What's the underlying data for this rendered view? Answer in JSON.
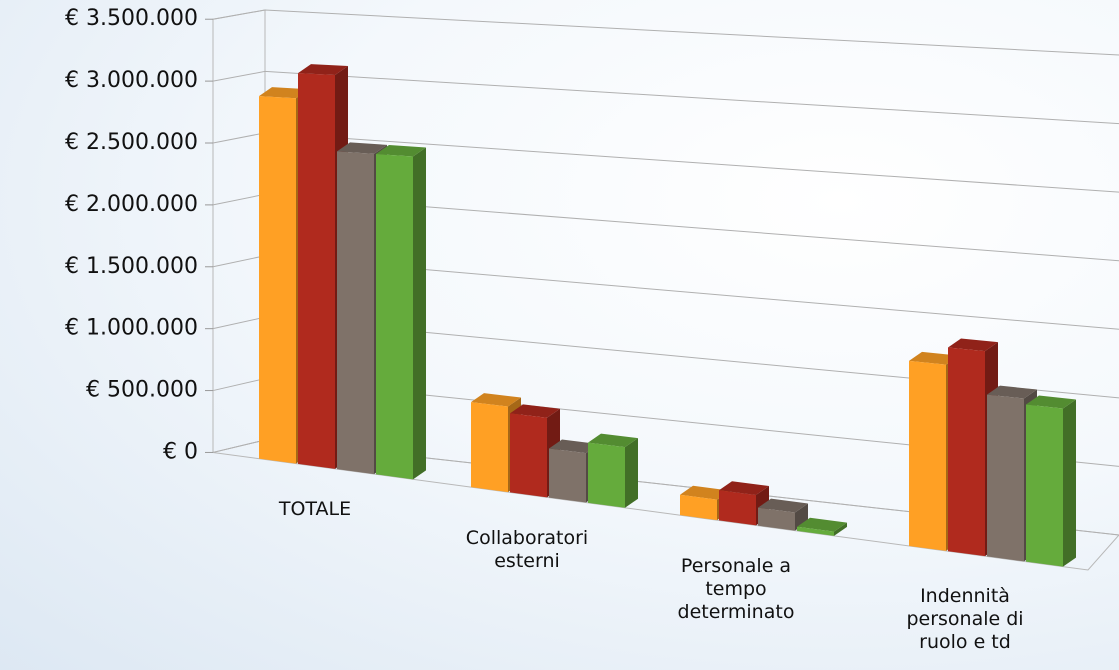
{
  "chart_data": {
    "type": "bar3d",
    "categories": [
      "TOTALE",
      "Collaboratori esterni",
      "Personale a tempo determinato",
      "Indennità personale di ruolo e td"
    ],
    "series": [
      {
        "color": "#ffa024",
        "values": [
          2900000,
          650000,
          150000,
          1300000
        ]
      },
      {
        "color": "#b02a1e",
        "values": [
          3100000,
          600000,
          220000,
          1420000
        ]
      },
      {
        "color": "#7f7269",
        "values": [
          2500000,
          370000,
          130000,
          1120000
        ]
      },
      {
        "color": "#65ab3c",
        "values": [
          2500000,
          450000,
          30000,
          1080000
        ]
      }
    ],
    "ylim": [
      0,
      3500000
    ],
    "yticks": [
      {
        "value": 0,
        "label": "€ 0"
      },
      {
        "value": 500000,
        "label": "€ 500.000"
      },
      {
        "value": 1000000,
        "label": "€ 1.000.000"
      },
      {
        "value": 1500000,
        "label": "€ 1.500.000"
      },
      {
        "value": 2000000,
        "label": "€ 2.000.000"
      },
      {
        "value": 2500000,
        "label": "€ 2.500.000"
      },
      {
        "value": 3000000,
        "label": "€ 3.000.000"
      },
      {
        "value": 3500000,
        "label": "€ 3.500.000"
      }
    ],
    "grid": true
  }
}
